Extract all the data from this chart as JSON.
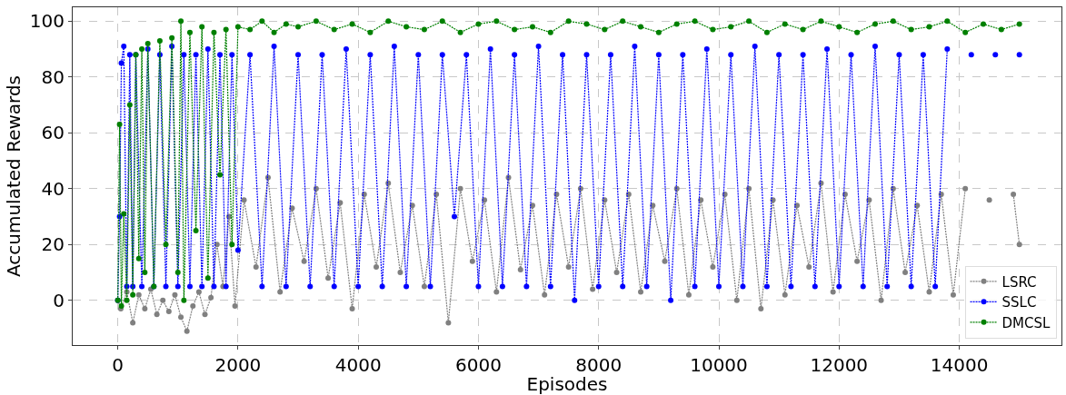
{
  "chart_data": {
    "type": "line",
    "xlabel": "Episodes",
    "ylabel": "Accumulated Rewards",
    "xlim": [
      -750,
      15700
    ],
    "ylim": [
      -16,
      105
    ],
    "xticks": [
      0,
      2000,
      4000,
      6000,
      8000,
      10000,
      12000,
      14000
    ],
    "yticks": [
      0,
      20,
      40,
      60,
      80,
      100
    ],
    "grid": true,
    "legend": "bottom right",
    "marker": "circle",
    "line_style": "dotted",
    "series": [
      {
        "name": "LSRC",
        "color": "#808080",
        "x": [
          0,
          50,
          150,
          250,
          350,
          450,
          550,
          650,
          750,
          850,
          950,
          1050,
          1150,
          1250,
          1350,
          1450,
          1550,
          1650,
          1750,
          1850,
          1950,
          2100,
          2300,
          2500,
          2700,
          2900,
          3100,
          3300,
          3500,
          3700,
          3900,
          4100,
          4300,
          4500,
          4700,
          4900,
          5100,
          5300,
          5500,
          5700,
          5900,
          6100,
          6300,
          6500,
          6700,
          6900,
          7100,
          7300,
          7500,
          7700,
          7900,
          8100,
          8300,
          8500,
          8700,
          8900,
          9100,
          9300,
          9500,
          9700,
          9900,
          10100,
          10300,
          10500,
          10700,
          10900,
          11100,
          11300,
          11500,
          11700,
          11900,
          12100,
          12300,
          12500,
          12700,
          12900,
          13100,
          13300,
          13500,
          13700,
          13900,
          14100,
          14300,
          14500,
          14700,
          14900,
          15000
        ],
        "values": [
          0,
          -3,
          3,
          -8,
          2,
          -3,
          4,
          -5,
          0,
          -4,
          2,
          -6,
          -11,
          -2,
          3,
          -5,
          1,
          20,
          5,
          30,
          -2,
          36,
          12,
          44,
          3,
          33,
          14,
          40,
          8,
          35,
          -3,
          38,
          12,
          42,
          10,
          34,
          5,
          38,
          -8,
          40,
          14,
          36,
          3,
          44,
          11,
          34,
          2,
          38,
          12,
          40,
          4,
          36,
          10,
          38,
          3,
          34,
          14,
          40,
          2,
          36,
          12,
          38,
          0,
          40,
          -3,
          36,
          2,
          34,
          12,
          42,
          3,
          38,
          14,
          36,
          0,
          40,
          10,
          34,
          3,
          38,
          2,
          40,
          null,
          36,
          null,
          38,
          20
        ]
      },
      {
        "name": "SSLC",
        "color": "#0000ff",
        "x": [
          0,
          30,
          60,
          100,
          150,
          200,
          250,
          300,
          400,
          500,
          600,
          700,
          800,
          900,
          1000,
          1100,
          1200,
          1300,
          1400,
          1500,
          1600,
          1700,
          1800,
          1900,
          2000,
          2200,
          2400,
          2600,
          2800,
          3000,
          3200,
          3400,
          3600,
          3800,
          4000,
          4200,
          4400,
          4600,
          4800,
          5000,
          5200,
          5400,
          5600,
          5800,
          6000,
          6200,
          6400,
          6600,
          6800,
          7000,
          7200,
          7400,
          7600,
          7800,
          8000,
          8200,
          8400,
          8600,
          8800,
          9000,
          9200,
          9400,
          9600,
          9800,
          10000,
          10200,
          10400,
          10600,
          10800,
          11000,
          11200,
          11400,
          11600,
          11800,
          12000,
          12200,
          12400,
          12600,
          12800,
          13000,
          13200,
          13400,
          13600,
          13800,
          14000,
          14200,
          14400,
          14600,
          14800,
          15000
        ],
        "values": [
          0,
          30,
          85,
          91,
          5,
          88,
          5,
          88,
          5,
          90,
          5,
          88,
          5,
          91,
          5,
          88,
          5,
          88,
          5,
          90,
          5,
          88,
          5,
          88,
          18,
          88,
          5,
          91,
          5,
          88,
          5,
          88,
          5,
          90,
          5,
          88,
          5,
          91,
          5,
          88,
          5,
          88,
          30,
          88,
          5,
          90,
          5,
          88,
          5,
          91,
          5,
          88,
          0,
          88,
          5,
          88,
          5,
          91,
          5,
          88,
          0,
          88,
          5,
          90,
          5,
          88,
          5,
          91,
          5,
          88,
          5,
          88,
          5,
          90,
          5,
          88,
          5,
          91,
          5,
          88,
          5,
          88,
          5,
          90,
          null,
          88,
          null,
          88,
          null,
          88
        ]
      },
      {
        "name": "DMCSL",
        "color": "#008000",
        "x": [
          0,
          30,
          60,
          100,
          150,
          200,
          250,
          300,
          350,
          400,
          450,
          500,
          600,
          700,
          800,
          900,
          1000,
          1050,
          1100,
          1200,
          1300,
          1400,
          1500,
          1600,
          1700,
          1800,
          1900,
          2000,
          2200,
          2400,
          2600,
          2800,
          3000,
          3300,
          3600,
          3900,
          4200,
          4500,
          4800,
          5100,
          5400,
          5700,
          6000,
          6300,
          6600,
          6900,
          7200,
          7500,
          7800,
          8100,
          8400,
          8700,
          9000,
          9300,
          9600,
          9900,
          10200,
          10500,
          10800,
          11100,
          11400,
          11700,
          12000,
          12300,
          12600,
          12900,
          13200,
          13500,
          13800,
          14100,
          14400,
          14700,
          15000
        ],
        "values": [
          0,
          63,
          -2,
          31,
          0,
          70,
          2,
          88,
          15,
          90,
          10,
          92,
          5,
          93,
          20,
          94,
          10,
          100,
          0,
          96,
          25,
          98,
          8,
          96,
          45,
          97,
          20,
          98,
          97,
          100,
          96,
          99,
          98,
          100,
          97,
          99,
          96,
          100,
          98,
          97,
          100,
          96,
          99,
          100,
          97,
          98,
          96,
          100,
          99,
          97,
          100,
          98,
          96,
          99,
          100,
          97,
          98,
          100,
          96,
          99,
          97,
          100,
          98,
          96,
          99,
          100,
          97,
          98,
          100,
          96,
          99,
          97,
          99
        ]
      }
    ]
  }
}
